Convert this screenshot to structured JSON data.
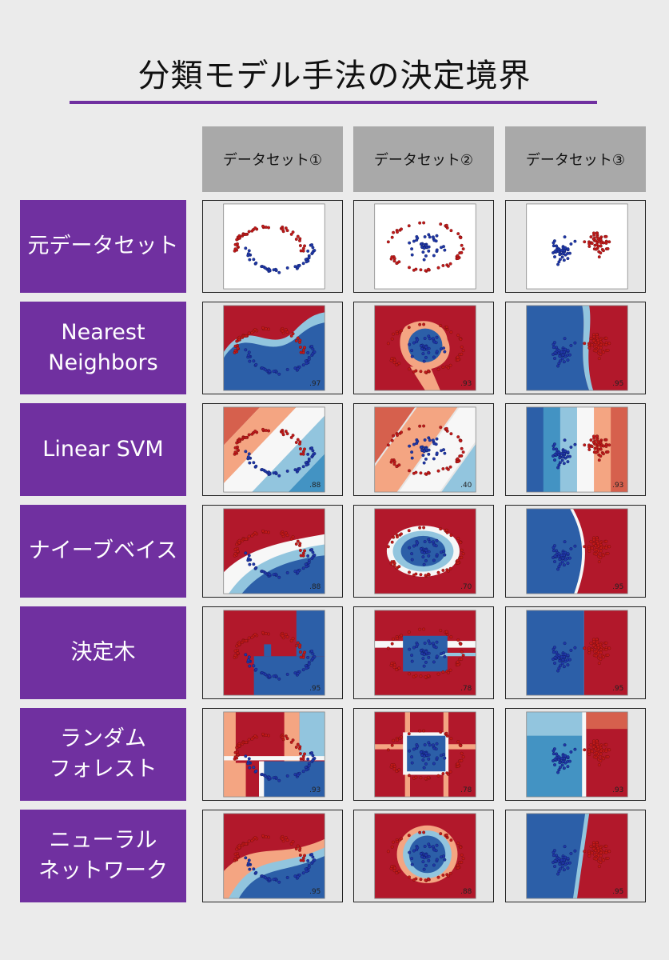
{
  "title": "分類モデル手法の決定境界",
  "columns": [
    "データセット①",
    "データセット②",
    "データセット③"
  ],
  "rows": [
    {
      "label": "元データセット",
      "scores": [
        "",
        "",
        ""
      ]
    },
    {
      "label": "Nearest\nNeighbors",
      "scores": [
        ".97",
        ".93",
        ".95"
      ]
    },
    {
      "label": "Linear SVM",
      "scores": [
        ".88",
        ".40",
        ".93"
      ]
    },
    {
      "label": "ナイーブベイス",
      "scores": [
        ".88",
        ".70",
        ".95"
      ]
    },
    {
      "label": "決定木",
      "scores": [
        ".95",
        ".78",
        ".95"
      ]
    },
    {
      "label": "ランダム\nフォレスト",
      "scores": [
        ".93",
        ".78",
        ".93"
      ]
    },
    {
      "label": "ニューラル\nネットワーク",
      "scores": [
        ".95",
        ".88",
        ".95"
      ]
    }
  ],
  "colors": {
    "accent": "#7030a0",
    "class_red": "#b2182b",
    "class_blue": "#2c5fa8",
    "header_gray": "#a9a9a9"
  }
}
